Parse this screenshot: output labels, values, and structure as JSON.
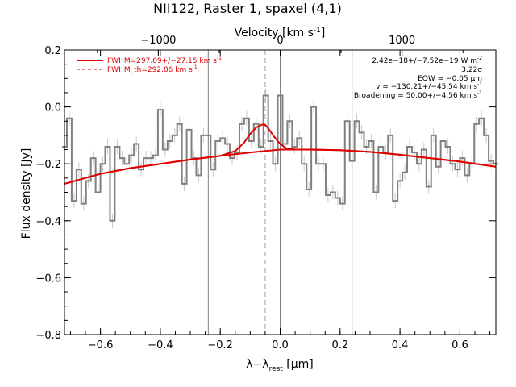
{
  "chart_data": {
    "type": "line",
    "title": "NII122, Raster 1, spaxel (4,1)",
    "xlabel_main": "λ−λ",
    "xlabel_sub": "rest",
    "xlabel_unit": " [μm]",
    "ylabel": "Flux density [Jy]",
    "top_axis_label": "Velocity [km s",
    "top_axis_label_sup": "-1",
    "top_axis_label_end": "]",
    "xlim": [
      -0.72,
      0.72
    ],
    "ylim": [
      -0.8,
      0.2
    ],
    "top_xlim": [
      -1770,
      1770
    ],
    "xticks": [
      -0.6,
      -0.4,
      -0.2,
      0.0,
      0.2,
      0.4,
      0.6
    ],
    "xtick_labels": [
      "−0.6",
      "−0.4",
      "−0.2",
      "0.0",
      "0.2",
      "0.4",
      "0.6"
    ],
    "yticks": [
      0.2,
      0.0,
      -0.2,
      -0.4,
      -0.6,
      -0.8
    ],
    "ytick_labels": [
      "0.2",
      "0.0",
      "−0.2",
      "−0.4",
      "−0.6",
      "−0.8"
    ],
    "top_ticks": [
      -1000,
      0,
      1000
    ],
    "top_tick_labels": [
      "−1000",
      "0",
      "1000"
    ],
    "vertical_lines_solid": [
      -0.24,
      0.0,
      0.24
    ],
    "vertical_line_dashed": -0.05,
    "legend": [
      {
        "label": "FWHM=297.09+/−27.15 km s",
        "sup": "-1",
        "style": "solid",
        "color": "#e00000"
      },
      {
        "label": "FWHM_th=292.86 km s",
        "sup": "-1",
        "style": "dashed",
        "color": "#e00000"
      }
    ],
    "annotations": [
      {
        "text": "2.42e−18+/−7.52e−19 W m",
        "sup": "-2"
      },
      {
        "text": "3.22σ",
        "sup": ""
      },
      {
        "text": "EQW = −0.05 μm",
        "sup": ""
      },
      {
        "text": "v = −130.21+/−45.54 km s",
        "sup": "-1"
      },
      {
        "text": "Broadening = 50.00+/−4.56 km s",
        "sup": "-1"
      }
    ],
    "series": [
      {
        "name": "data",
        "style": "steps",
        "color": "#808080",
        "x": [
          -0.72,
          -0.704,
          -0.688,
          -0.672,
          -0.656,
          -0.64,
          -0.624,
          -0.608,
          -0.592,
          -0.576,
          -0.56,
          -0.544,
          -0.528,
          -0.512,
          -0.496,
          -0.48,
          -0.464,
          -0.448,
          -0.432,
          -0.416,
          -0.4,
          -0.384,
          -0.368,
          -0.352,
          -0.336,
          -0.32,
          -0.304,
          -0.288,
          -0.272,
          -0.256,
          -0.24,
          -0.224,
          -0.208,
          -0.192,
          -0.176,
          -0.16,
          -0.144,
          -0.128,
          -0.112,
          -0.096,
          -0.08,
          -0.064,
          -0.048,
          -0.032,
          -0.016,
          0.0,
          0.016,
          0.032,
          0.048,
          0.064,
          0.08,
          0.096,
          0.112,
          0.128,
          0.144,
          0.16,
          0.176,
          0.192,
          0.208,
          0.224,
          0.24,
          0.256,
          0.272,
          0.288,
          0.304,
          0.32,
          0.336,
          0.352,
          0.368,
          0.384,
          0.4,
          0.416,
          0.432,
          0.448,
          0.464,
          0.48,
          0.496,
          0.512,
          0.528,
          0.544,
          0.56,
          0.576,
          0.592,
          0.608,
          0.624,
          0.64,
          0.656,
          0.672,
          0.688,
          0.704,
          0.72
        ],
        "y": [
          -0.14,
          -0.04,
          -0.33,
          -0.22,
          -0.34,
          -0.26,
          -0.18,
          -0.3,
          -0.2,
          -0.14,
          -0.4,
          -0.14,
          -0.18,
          -0.2,
          -0.17,
          -0.13,
          -0.22,
          -0.18,
          -0.18,
          -0.17,
          -0.01,
          -0.15,
          -0.12,
          -0.1,
          -0.06,
          -0.27,
          -0.08,
          -0.18,
          -0.24,
          -0.1,
          -0.1,
          -0.22,
          -0.12,
          -0.11,
          -0.13,
          -0.18,
          -0.16,
          -0.06,
          -0.04,
          -0.12,
          -0.06,
          -0.14,
          0.04,
          -0.12,
          -0.2,
          0.04,
          -0.13,
          -0.05,
          -0.14,
          -0.11,
          -0.2,
          -0.29,
          0.0,
          -0.2,
          -0.2,
          -0.31,
          -0.3,
          -0.32,
          -0.34,
          -0.05,
          -0.19,
          -0.05,
          -0.09,
          -0.14,
          -0.12,
          -0.3,
          -0.14,
          -0.16,
          -0.1,
          -0.33,
          -0.26,
          -0.23,
          -0.14,
          -0.16,
          -0.2,
          -0.15,
          -0.28,
          -0.1,
          -0.21,
          -0.12,
          -0.14,
          -0.2,
          -0.22,
          -0.18,
          -0.24,
          -0.2,
          -0.06,
          -0.04,
          -0.1,
          -0.19,
          -0.2
        ]
      },
      {
        "name": "fit",
        "style": "line",
        "color": "#e00000",
        "x": [
          -0.72,
          -0.6,
          -0.5,
          -0.4,
          -0.3,
          -0.2,
          -0.15,
          -0.12,
          -0.1,
          -0.08,
          -0.06,
          -0.05,
          -0.04,
          -0.02,
          0.0,
          0.02,
          0.05,
          0.1,
          0.2,
          0.3,
          0.4,
          0.5,
          0.6,
          0.72
        ],
        "y": [
          -0.27,
          -0.235,
          -0.215,
          -0.2,
          -0.185,
          -0.172,
          -0.155,
          -0.125,
          -0.095,
          -0.072,
          -0.062,
          -0.063,
          -0.075,
          -0.105,
          -0.13,
          -0.145,
          -0.15,
          -0.15,
          -0.152,
          -0.158,
          -0.168,
          -0.18,
          -0.192,
          -0.21
        ]
      },
      {
        "name": "continuum",
        "style": "line",
        "color": "#e00000",
        "x": [
          -0.72,
          -0.6,
          -0.5,
          -0.4,
          -0.3,
          -0.2,
          -0.1,
          0.0,
          0.1,
          0.2,
          0.3,
          0.4,
          0.5,
          0.6,
          0.72
        ],
        "y": [
          -0.27,
          -0.235,
          -0.215,
          -0.2,
          -0.185,
          -0.172,
          -0.16,
          -0.15,
          -0.15,
          -0.152,
          -0.158,
          -0.168,
          -0.18,
          -0.192,
          -0.21
        ]
      }
    ]
  }
}
